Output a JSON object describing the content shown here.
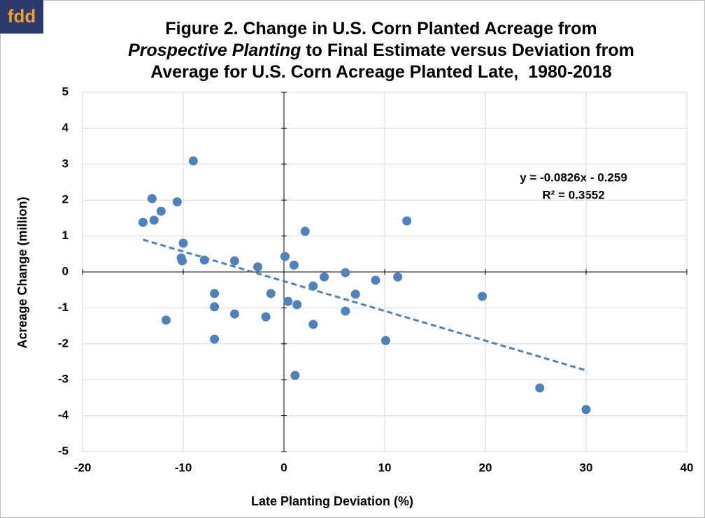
{
  "logo": "fdd",
  "chart_data": {
    "type": "scatter",
    "title": [
      "Figure 2. Change in U.S. Corn Planted Acreage from",
      "Prospective Planting",
      " to Final Estimate versus Deviation from",
      "Average for U.S. Corn Acreage Planted Late,  1980-2018"
    ],
    "xlabel": "Late Planting Deviation (%)",
    "ylabel": "Acreage Change (million)",
    "xlim": [
      -20,
      40
    ],
    "xticks": [
      -20,
      -10,
      0,
      10,
      20,
      30,
      40
    ],
    "ylim": [
      -5,
      5
    ],
    "yticks": [
      -5,
      -4,
      -3,
      -2,
      -1,
      0,
      1,
      2,
      3,
      4,
      5
    ],
    "grid": true,
    "series": [
      {
        "name": "Acreage change",
        "color": "#4f81bd",
        "x": [
          -14.0,
          -13.1,
          -12.9,
          -12.2,
          -10.6,
          -9.0,
          -11.7,
          -10.0,
          -10.2,
          -10.1,
          -7.9,
          -6.9,
          -6.9,
          -6.9,
          -4.9,
          -4.9,
          -2.6,
          -1.3,
          -1.8,
          0.1,
          1.0,
          0.4,
          1.3,
          2.1,
          1.1,
          2.9,
          2.9,
          4.0,
          6.1,
          6.1,
          7.1,
          9.1,
          10.1,
          11.3,
          12.2,
          19.7,
          25.4,
          30.0
        ],
        "values": [
          1.38,
          2.04,
          1.44,
          1.69,
          1.95,
          3.09,
          -1.34,
          0.8,
          0.39,
          0.31,
          0.33,
          -0.6,
          -0.97,
          -1.87,
          0.31,
          -1.17,
          0.14,
          -0.6,
          -1.25,
          0.43,
          0.19,
          -0.82,
          -0.91,
          1.13,
          -2.88,
          -0.39,
          -1.46,
          -0.14,
          -0.02,
          -1.09,
          -0.62,
          -0.23,
          -1.91,
          -0.14,
          1.42,
          -0.68,
          -3.23,
          -3.83
        ]
      }
    ],
    "trendline": {
      "color": "#4f81bd",
      "x": [
        -14,
        30
      ],
      "values": [
        0.9,
        -2.74
      ]
    },
    "annotations": [
      "y = -0.0826x - 0.259",
      "R² = 0.3552"
    ]
  }
}
